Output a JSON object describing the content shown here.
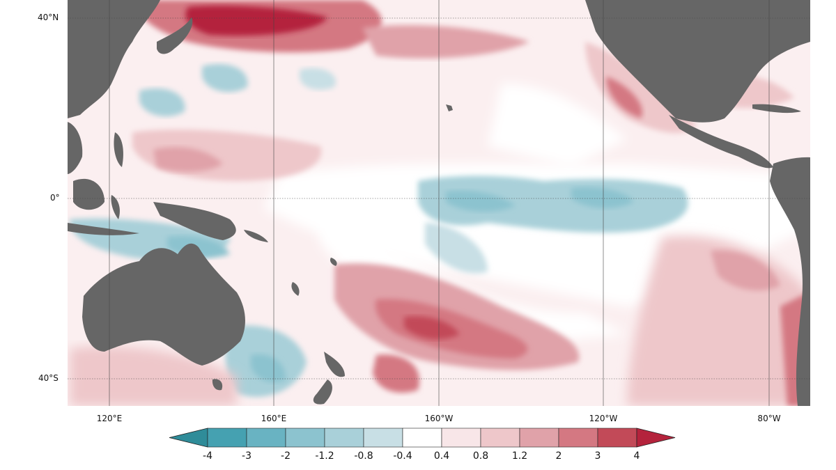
{
  "map": {
    "latitude_labels": [
      "40°N",
      "0°",
      "40°S"
    ],
    "longitude_labels": [
      "120°E",
      "160°E",
      "160°W",
      "120°W",
      "80°W"
    ],
    "colors": {
      "land": "#666666",
      "ocean_neutral": "#ffffff"
    }
  },
  "legend": {
    "ticks": [
      "-4",
      "-3",
      "-2",
      "-1.2",
      "-0.8",
      "-0.4",
      "0.4",
      "0.8",
      "1.2",
      "2",
      "3",
      "4"
    ],
    "bins": [
      {
        "color": "#2f8c99"
      },
      {
        "color": "#45a1b1"
      },
      {
        "color": "#69b3c2"
      },
      {
        "color": "#8cc3cf"
      },
      {
        "color": "#a9d0d9"
      },
      {
        "color": "#c8dfe5"
      },
      {
        "color": "#ffffff"
      },
      {
        "color": "#f8e6e8"
      },
      {
        "color": "#eec7ca"
      },
      {
        "color": "#e0a2a9"
      },
      {
        "color": "#d47882"
      },
      {
        "color": "#c24a58"
      },
      {
        "color": "#b4233c"
      }
    ]
  }
}
